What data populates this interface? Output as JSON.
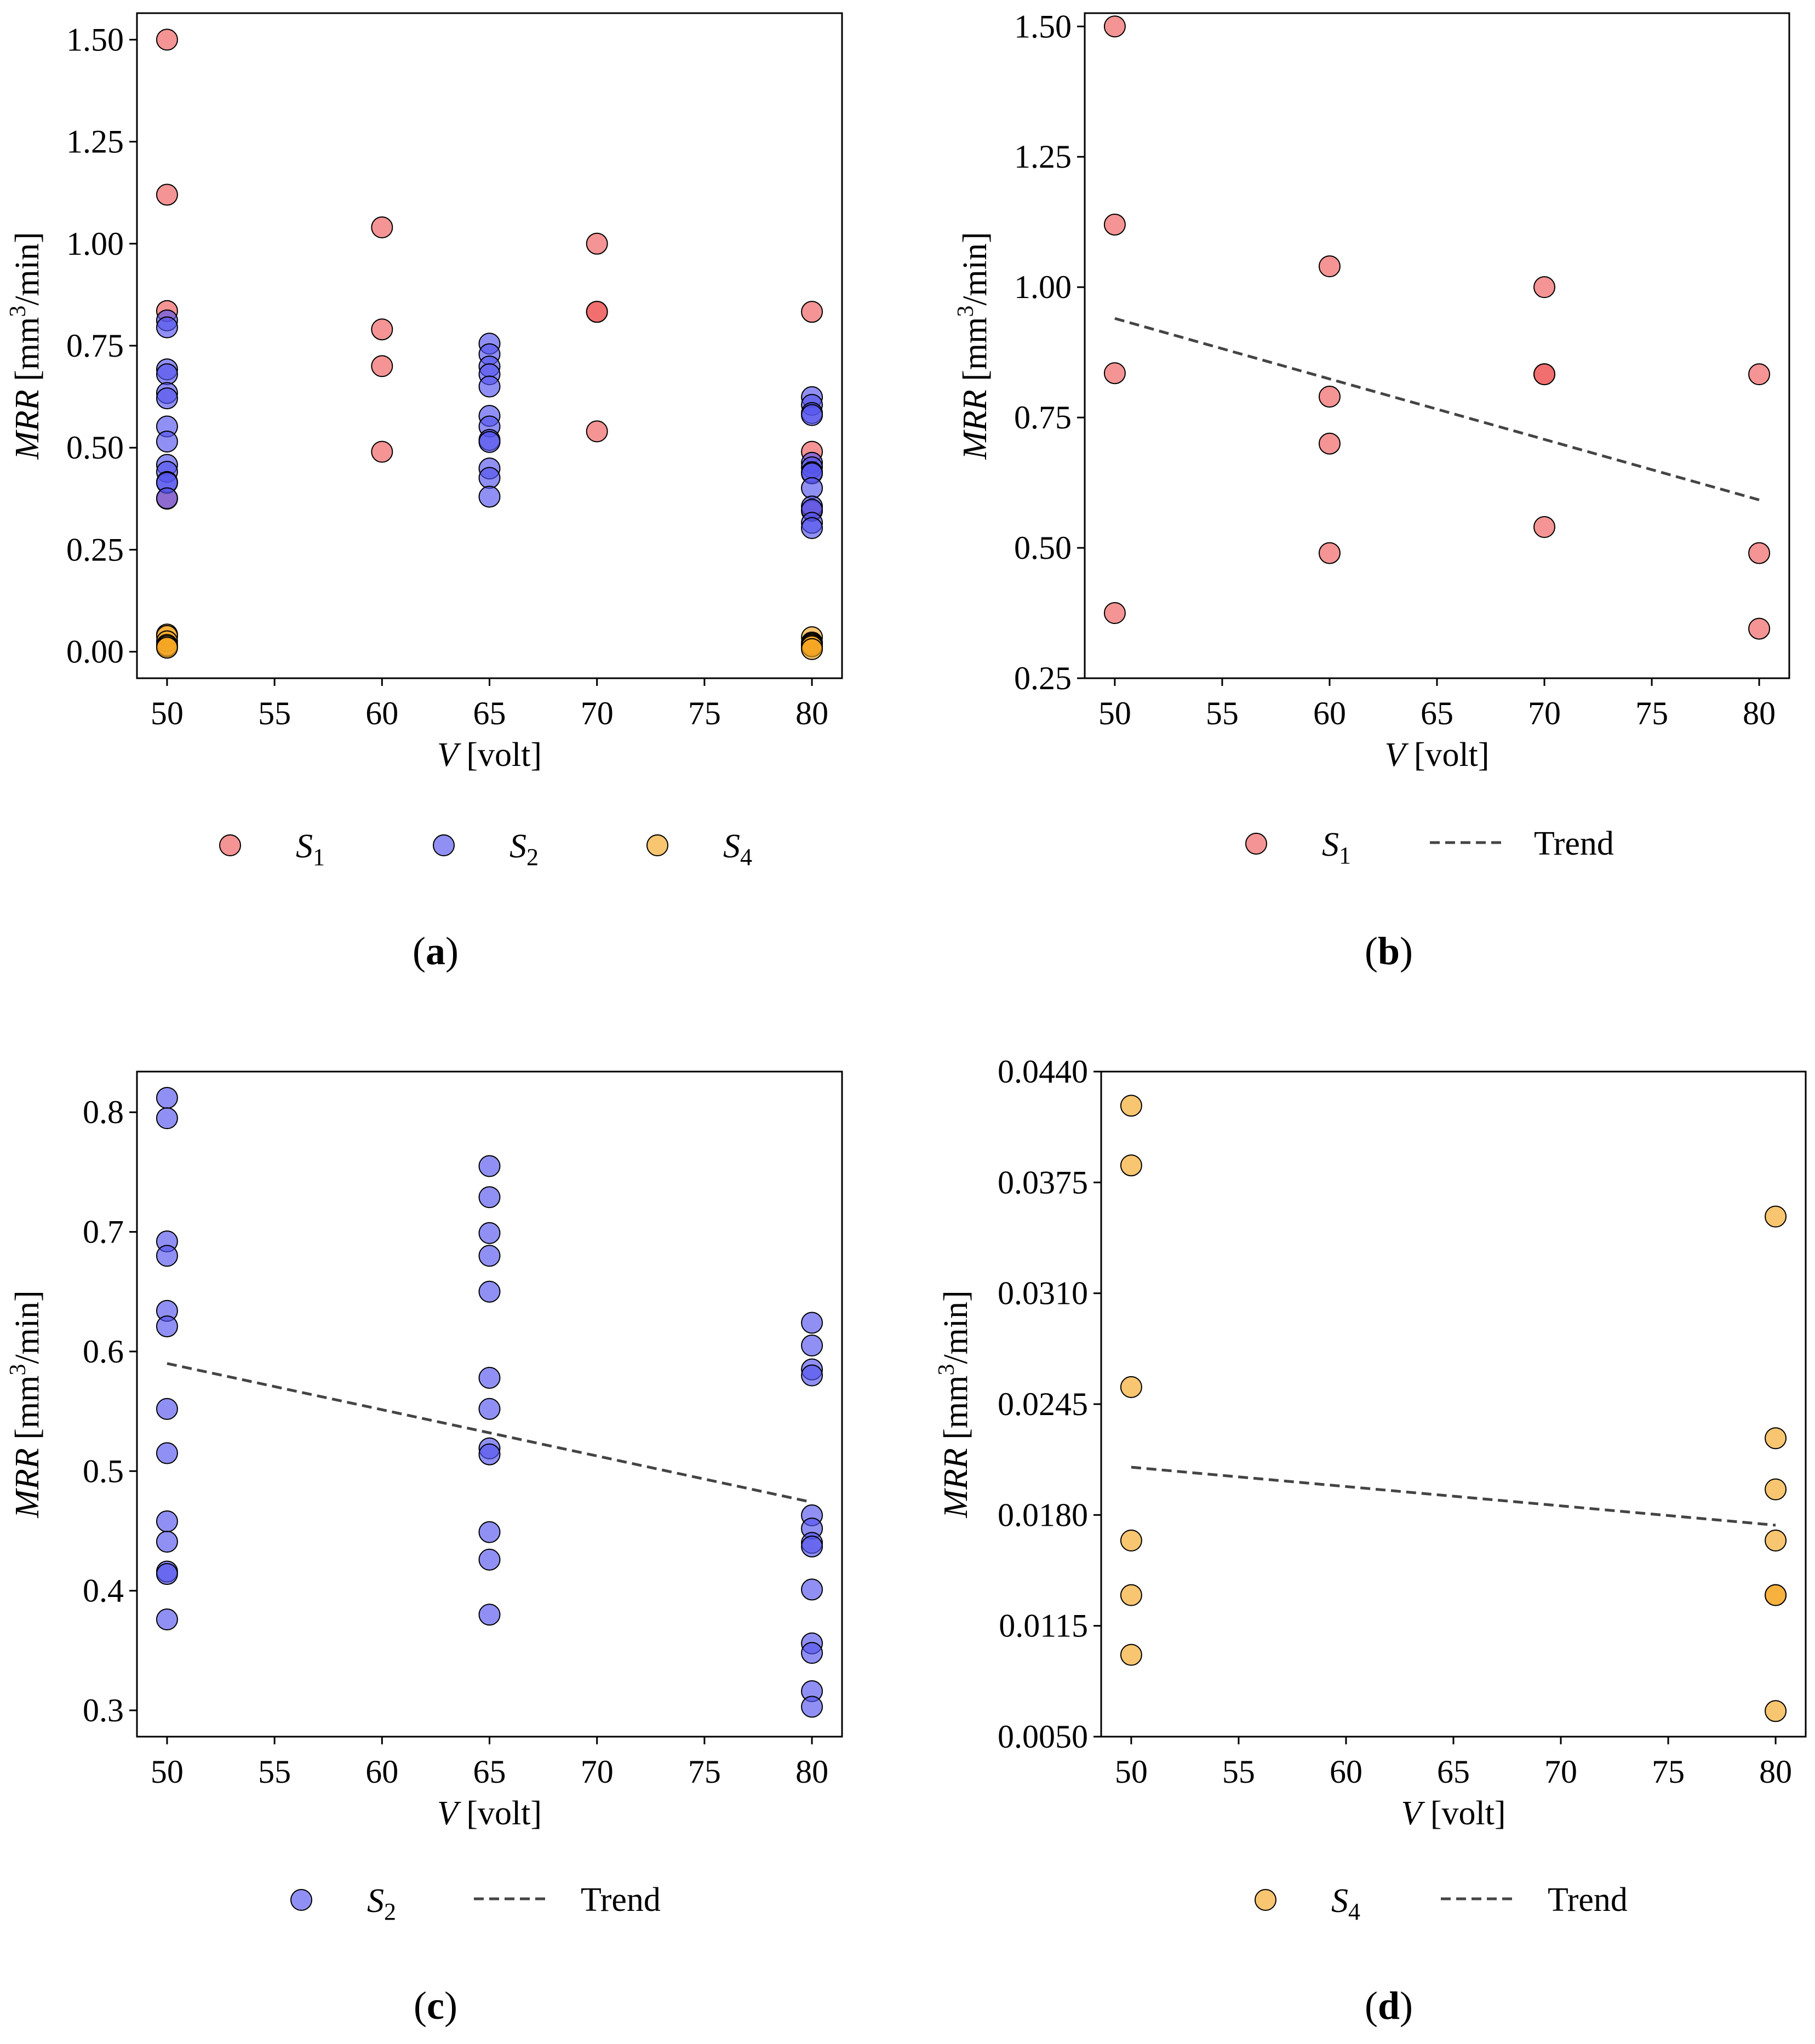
{
  "colors": {
    "S1": "#f05a5a",
    "S2": "#5555ee",
    "S4": "#f5a623",
    "trend": "#444444",
    "axis": "#000000"
  },
  "chart_data": [
    {
      "id": "a",
      "caption_letter": "a",
      "type": "scatter",
      "xlabel_var": "V",
      "xlabel_unit": " [volt]",
      "ylabel_var": "MRR",
      "ylabel_unit_pre": " [mm",
      "ylabel_unit_sup": "3",
      "ylabel_unit_post": "/min]",
      "xlim": [
        48.6,
        81.4
      ],
      "ylim": [
        -0.065,
        1.565
      ],
      "xticks": [
        50,
        55,
        60,
        65,
        70,
        75,
        80
      ],
      "yticks": [
        0.0,
        0.25,
        0.5,
        0.75,
        1.0,
        1.25,
        1.5
      ],
      "ytick_labels": [
        "0.00",
        "0.25",
        "0.50",
        "0.75",
        "1.00",
        "1.25",
        "1.50"
      ],
      "series": [
        {
          "key": "S1",
          "sym": "S",
          "sub": "1",
          "x": [
            50,
            50,
            50,
            50,
            60,
            60,
            60,
            60,
            70,
            70,
            70,
            70,
            80,
            80,
            80
          ],
          "y": [
            1.5,
            1.12,
            0.835,
            0.375,
            1.04,
            0.79,
            0.7,
            0.49,
            1.0,
            0.833,
            0.833,
            0.54,
            0.833,
            0.49,
            0.345
          ]
        },
        {
          "key": "S2",
          "sym": "S",
          "sub": "2",
          "x": [
            50,
            50,
            50,
            50,
            50,
            50,
            50,
            50,
            50,
            50,
            50,
            50,
            50,
            65,
            65,
            65,
            65,
            65,
            65,
            65,
            65,
            65,
            65,
            65,
            65,
            80,
            80,
            80,
            80,
            80,
            80,
            80,
            80,
            80,
            80,
            80,
            80,
            80
          ],
          "y": [
            0.812,
            0.795,
            0.692,
            0.68,
            0.634,
            0.621,
            0.552,
            0.515,
            0.458,
            0.441,
            0.416,
            0.414,
            0.376,
            0.755,
            0.729,
            0.699,
            0.68,
            0.65,
            0.578,
            0.552,
            0.519,
            0.514,
            0.449,
            0.426,
            0.38,
            0.624,
            0.605,
            0.585,
            0.58,
            0.463,
            0.452,
            0.44,
            0.437,
            0.401,
            0.356,
            0.348,
            0.316,
            0.303
          ]
        },
        {
          "key": "S4",
          "sym": "S",
          "sub": "4",
          "x": [
            50,
            50,
            50,
            50,
            50,
            50,
            80,
            80,
            80,
            80,
            80,
            80,
            80
          ],
          "y": [
            0.042,
            0.0385,
            0.0255,
            0.0165,
            0.0133,
            0.0098,
            0.0355,
            0.0225,
            0.0195,
            0.0165,
            0.0133,
            0.0133,
            0.0065
          ]
        }
      ]
    },
    {
      "id": "b",
      "caption_letter": "b",
      "type": "scatter",
      "xlabel_var": "V",
      "xlabel_unit": " [volt]",
      "ylabel_var": "MRR",
      "ylabel_unit_pre": " [mm",
      "ylabel_unit_sup": "3",
      "ylabel_unit_post": "/min]",
      "xlim": [
        48.6,
        81.4
      ],
      "ylim": [
        0.25,
        1.5255
      ],
      "xticks": [
        50,
        55,
        60,
        65,
        70,
        75,
        80
      ],
      "yticks": [
        0.25,
        0.5,
        0.75,
        1.0,
        1.25,
        1.5
      ],
      "ytick_labels": [
        "0.25",
        "0.50",
        "0.75",
        "1.00",
        "1.25",
        "1.50"
      ],
      "series": [
        {
          "key": "S1",
          "sym": "S",
          "sub": "1",
          "x": [
            50,
            50,
            50,
            50,
            60,
            60,
            60,
            60,
            70,
            70,
            70,
            70,
            80,
            80,
            80
          ],
          "y": [
            1.5,
            1.12,
            0.835,
            0.375,
            1.04,
            0.79,
            0.7,
            0.49,
            1.0,
            0.833,
            0.833,
            0.54,
            0.833,
            0.49,
            0.345
          ]
        }
      ],
      "trend": {
        "x": [
          50,
          80
        ],
        "y": [
          0.94,
          0.592
        ],
        "label": "Trend"
      }
    },
    {
      "id": "c",
      "caption_letter": "c",
      "type": "scatter",
      "xlabel_var": "V",
      "xlabel_unit": " [volt]",
      "ylabel_var": "MRR",
      "ylabel_unit_pre": " [mm",
      "ylabel_unit_sup": "3",
      "ylabel_unit_post": "/min]",
      "xlim": [
        48.6,
        81.4
      ],
      "ylim": [
        0.278,
        0.834
      ],
      "xticks": [
        50,
        55,
        60,
        65,
        70,
        75,
        80
      ],
      "yticks": [
        0.3,
        0.4,
        0.5,
        0.6,
        0.7,
        0.8
      ],
      "ytick_labels": [
        "0.3",
        "0.4",
        "0.5",
        "0.6",
        "0.7",
        "0.8"
      ],
      "series": [
        {
          "key": "S2",
          "sym": "S",
          "sub": "2",
          "x": [
            50,
            50,
            50,
            50,
            50,
            50,
            50,
            50,
            50,
            50,
            50,
            50,
            50,
            65,
            65,
            65,
            65,
            65,
            65,
            65,
            65,
            65,
            65,
            65,
            65,
            80,
            80,
            80,
            80,
            80,
            80,
            80,
            80,
            80,
            80,
            80,
            80,
            80
          ],
          "y": [
            0.812,
            0.795,
            0.692,
            0.68,
            0.634,
            0.621,
            0.552,
            0.515,
            0.458,
            0.441,
            0.416,
            0.414,
            0.376,
            0.755,
            0.729,
            0.699,
            0.68,
            0.65,
            0.578,
            0.552,
            0.519,
            0.514,
            0.449,
            0.426,
            0.38,
            0.624,
            0.605,
            0.585,
            0.58,
            0.463,
            0.452,
            0.44,
            0.437,
            0.401,
            0.356,
            0.348,
            0.316,
            0.303
          ]
        }
      ],
      "trend": {
        "x": [
          50,
          80
        ],
        "y": [
          0.59,
          0.474
        ],
        "label": "Trend"
      }
    },
    {
      "id": "d",
      "caption_letter": "d",
      "type": "scatter",
      "xlabel_var": "V",
      "xlabel_unit": " [volt]",
      "ylabel_var": "MRR",
      "ylabel_unit_pre": " [mm",
      "ylabel_unit_sup": "3",
      "ylabel_unit_post": "/min]",
      "xlim": [
        48.6,
        81.4
      ],
      "ylim": [
        0.005,
        0.044
      ],
      "xticks": [
        50,
        55,
        60,
        65,
        70,
        75,
        80
      ],
      "yticks": [
        0.005,
        0.0115,
        0.018,
        0.0245,
        0.031,
        0.0375,
        0.044
      ],
      "ytick_labels": [
        "0.0050",
        "0.0115",
        "0.0180",
        "0.0245",
        "0.0310",
        "0.0375",
        "0.0440"
      ],
      "series": [
        {
          "key": "S4",
          "sym": "S",
          "sub": "4",
          "x": [
            50,
            50,
            50,
            50,
            50,
            50,
            80,
            80,
            80,
            80,
            80,
            80,
            80
          ],
          "y": [
            0.042,
            0.0385,
            0.0255,
            0.0165,
            0.0133,
            0.0098,
            0.0355,
            0.0225,
            0.0195,
            0.0165,
            0.0133,
            0.0133,
            0.0065
          ]
        }
      ],
      "trend": {
        "x": [
          50,
          80
        ],
        "y": [
          0.0208,
          0.0174
        ],
        "label": "Trend"
      }
    }
  ]
}
